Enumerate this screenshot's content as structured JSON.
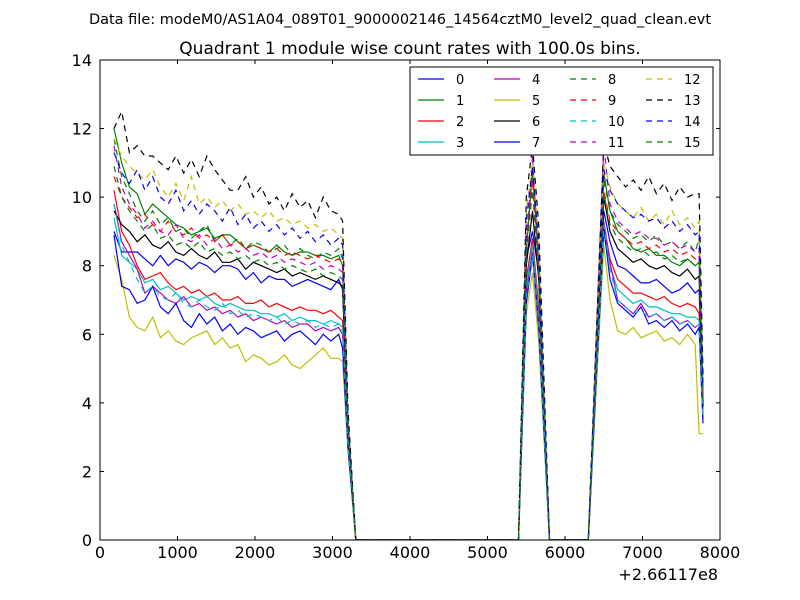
{
  "chart_data": {
    "type": "line",
    "suptitle": "Data file: modeM0/AS1A04_089T01_9000002146_14564cztM0_level2_quad_clean.evt",
    "title": "Quadrant 1 module wise count rates with 100.0s bins.",
    "xlabel": "",
    "ylabel": "",
    "x_offset_label": "+2.66117e8",
    "xlim": [
      0,
      8000
    ],
    "ylim": [
      0,
      14
    ],
    "xticks": [
      0,
      1000,
      2000,
      3000,
      4000,
      5000,
      6000,
      7000,
      8000
    ],
    "yticks": [
      0,
      2,
      4,
      6,
      8,
      10,
      12,
      14
    ],
    "legend_position": "top-right",
    "x_segment1": [
      180,
      280,
      380,
      480,
      580,
      680,
      780,
      880,
      980,
      1080,
      1180,
      1280,
      1380,
      1480,
      1580,
      1680,
      1780,
      1880,
      1980,
      2080,
      2180,
      2280,
      2380,
      2480,
      2580,
      2680,
      2780,
      2880,
      2980,
      3080,
      3130
    ],
    "x_segment2": [
      5500,
      5580,
      5660
    ],
    "x_segment3": [
      6500,
      6580,
      6680,
      6780,
      6880,
      6980,
      7080,
      7180,
      7280,
      7380,
      7480,
      7580,
      7680,
      7730
    ],
    "gap_x": [
      3200,
      3300,
      5400,
      5800,
      6300,
      7780
    ],
    "series": [
      {
        "name": "0",
        "color": "#0000ff",
        "dash": "solid",
        "seg1": [
          9.0,
          8.4,
          8.4,
          8.4,
          8.2,
          8.0,
          8.3,
          8.0,
          8.2,
          8.1,
          7.9,
          8.1,
          8.0,
          7.8,
          8.0,
          8.0,
          7.9,
          7.6,
          7.8,
          7.5,
          7.7,
          7.6,
          7.6,
          7.4,
          7.5,
          7.6,
          7.5,
          7.4,
          7.3,
          7.6,
          7.3
        ],
        "seg2": [
          8.2,
          9.0,
          7.8
        ],
        "seg3": [
          9.6,
          8.7,
          8.0,
          7.9,
          7.7,
          7.5,
          7.5,
          7.6,
          7.4,
          7.2,
          7.3,
          7.5,
          7.2,
          7.3
        ],
        "gap": [
          3.2,
          0,
          0,
          0,
          0,
          4.0
        ]
      },
      {
        "name": "1",
        "color": "#008000",
        "dash": "solid",
        "seg1": [
          12.0,
          11.0,
          10.3,
          10.1,
          9.5,
          9.8,
          9.6,
          9.4,
          9.2,
          9.1,
          8.9,
          9.0,
          9.1,
          8.8,
          8.9,
          8.9,
          8.7,
          8.5,
          8.6,
          8.5,
          8.4,
          8.6,
          8.4,
          8.3,
          8.4,
          8.4,
          8.3,
          8.3,
          8.2,
          8.3,
          8.0
        ],
        "seg2": [
          8.4,
          10.8,
          8.1
        ],
        "seg3": [
          10.7,
          9.6,
          9.0,
          8.8,
          8.5,
          8.4,
          8.5,
          8.3,
          8.3,
          8.1,
          8.0,
          8.2,
          8.0,
          8.1
        ],
        "gap": [
          3.3,
          0,
          0,
          0,
          0,
          4.1
        ]
      },
      {
        "name": "2",
        "color": "#ff0000",
        "dash": "solid",
        "seg1": [
          10.2,
          9.0,
          8.6,
          8.0,
          7.6,
          7.7,
          7.8,
          7.5,
          7.3,
          7.4,
          7.2,
          7.3,
          7.1,
          7.2,
          7.0,
          7.0,
          7.1,
          6.9,
          6.9,
          7.0,
          6.8,
          6.9,
          6.8,
          6.7,
          6.8,
          6.7,
          6.7,
          6.6,
          6.7,
          6.5,
          6.4
        ],
        "seg2": [
          7.6,
          8.8,
          6.8
        ],
        "seg3": [
          9.2,
          8.2,
          7.6,
          7.4,
          7.2,
          7.2,
          7.1,
          7.0,
          7.1,
          6.9,
          6.8,
          6.9,
          6.8,
          6.6
        ],
        "gap": [
          3.0,
          0,
          0,
          0,
          0,
          3.7
        ]
      },
      {
        "name": "3",
        "color": "#00bfbf",
        "dash": "solid",
        "seg1": [
          9.4,
          8.3,
          8.1,
          7.9,
          7.5,
          7.6,
          7.3,
          7.4,
          7.2,
          7.0,
          7.1,
          7.0,
          7.1,
          6.9,
          6.8,
          6.9,
          6.8,
          6.7,
          6.7,
          6.6,
          6.6,
          6.5,
          6.6,
          6.4,
          6.5,
          6.4,
          6.4,
          6.3,
          6.4,
          6.3,
          6.2
        ],
        "seg2": [
          7.4,
          8.6,
          6.6
        ],
        "seg3": [
          9.0,
          8.0,
          7.3,
          7.1,
          6.9,
          7.0,
          6.8,
          6.8,
          6.7,
          6.6,
          6.6,
          6.5,
          6.5,
          6.4
        ],
        "gap": [
          2.9,
          0,
          0,
          0,
          0,
          3.6
        ]
      },
      {
        "name": "4",
        "color": "#bf00bf",
        "dash": "solid",
        "seg1": [
          9.8,
          8.7,
          8.3,
          7.9,
          7.2,
          7.4,
          7.2,
          7.0,
          6.9,
          7.1,
          6.8,
          6.9,
          6.7,
          6.8,
          6.6,
          6.7,
          6.5,
          6.6,
          6.4,
          6.5,
          6.4,
          6.3,
          6.4,
          6.2,
          6.3,
          6.3,
          6.1,
          6.2,
          6.1,
          6.2,
          6.0
        ],
        "seg2": [
          7.2,
          8.4,
          6.5
        ],
        "seg3": [
          9.3,
          8.1,
          7.0,
          6.8,
          6.6,
          6.9,
          6.5,
          6.6,
          6.4,
          6.5,
          6.3,
          6.4,
          6.2,
          6.3
        ],
        "gap": [
          2.8,
          0,
          0,
          0,
          0,
          3.5
        ]
      },
      {
        "name": "5",
        "color": "#bfbf00",
        "dash": "solid",
        "seg1": [
          8.3,
          7.6,
          6.5,
          6.2,
          6.1,
          6.5,
          5.9,
          6.1,
          5.8,
          5.7,
          5.9,
          6.0,
          6.1,
          5.7,
          5.9,
          5.6,
          5.7,
          5.2,
          5.4,
          5.3,
          5.1,
          5.2,
          5.4,
          5.1,
          5.0,
          5.2,
          5.4,
          5.6,
          5.3,
          5.3,
          5.2
        ],
        "seg2": [
          6.6,
          7.8,
          5.8
        ],
        "seg3": [
          8.6,
          7.0,
          6.1,
          6.0,
          6.2,
          5.9,
          6.0,
          6.1,
          5.8,
          5.9,
          5.7,
          6.0,
          5.7,
          3.1
        ],
        "gap": [
          2.6,
          0,
          0,
          0,
          0,
          3.1
        ]
      },
      {
        "name": "6",
        "color": "#000000",
        "dash": "solid",
        "seg1": [
          9.6,
          9.2,
          9.0,
          8.7,
          8.9,
          8.6,
          8.5,
          8.7,
          8.4,
          8.3,
          8.5,
          8.3,
          8.2,
          8.4,
          8.1,
          8.1,
          8.2,
          7.9,
          8.1,
          8.0,
          7.9,
          7.8,
          7.9,
          7.7,
          7.8,
          7.7,
          7.6,
          7.7,
          7.6,
          7.5,
          7.4
        ],
        "seg2": [
          8.0,
          9.6,
          7.6
        ],
        "seg3": [
          10.0,
          9.0,
          8.5,
          8.3,
          8.1,
          8.2,
          8.0,
          7.9,
          8.0,
          7.8,
          7.7,
          7.9,
          7.6,
          7.7
        ],
        "gap": [
          3.1,
          0,
          0,
          0,
          0,
          3.9
        ]
      },
      {
        "name": "7",
        "color": "#0000ff",
        "dash": "solid",
        "seg1": [
          8.9,
          7.4,
          7.3,
          6.9,
          7.0,
          7.4,
          6.8,
          6.6,
          6.9,
          6.4,
          6.2,
          6.6,
          6.3,
          6.5,
          6.1,
          6.3,
          6.0,
          6.2,
          6.1,
          5.9,
          6.0,
          6.1,
          5.8,
          6.0,
          6.1,
          5.9,
          5.7,
          6.0,
          5.8,
          6.0,
          5.6
        ],
        "seg2": [
          6.9,
          8.3,
          6.2
        ],
        "seg3": [
          9.1,
          7.6,
          6.9,
          6.7,
          6.5,
          6.8,
          6.3,
          6.4,
          6.2,
          6.4,
          6.1,
          6.3,
          6.0,
          6.2
        ],
        "gap": [
          2.7,
          0,
          0,
          0,
          0,
          3.4
        ]
      },
      {
        "name": "8",
        "color": "#008000",
        "dash": "dashed",
        "seg1": [
          11.7,
          10.6,
          10.1,
          9.6,
          9.3,
          9.6,
          9.2,
          9.4,
          9.0,
          9.1,
          8.8,
          9.0,
          9.2,
          8.7,
          8.9,
          8.6,
          8.8,
          8.5,
          8.7,
          8.6,
          8.4,
          8.5,
          8.6,
          8.3,
          8.5,
          8.3,
          8.2,
          8.4,
          8.3,
          8.5,
          8.2
        ],
        "seg2": [
          8.8,
          10.7,
          8.0
        ],
        "seg3": [
          10.5,
          9.6,
          9.2,
          9.0,
          8.8,
          8.9,
          8.7,
          8.9,
          8.6,
          8.7,
          8.5,
          8.7,
          8.4,
          8.8
        ],
        "gap": [
          3.4,
          0,
          0,
          0,
          0,
          4.4
        ]
      },
      {
        "name": "9",
        "color": "#ff0000",
        "dash": "dashed",
        "seg1": [
          10.6,
          10.0,
          9.7,
          9.4,
          9.5,
          9.2,
          9.0,
          9.3,
          9.0,
          8.9,
          9.1,
          8.8,
          8.9,
          8.7,
          8.9,
          8.6,
          8.7,
          8.5,
          8.6,
          8.5,
          8.4,
          8.5,
          8.3,
          8.4,
          8.3,
          8.2,
          8.3,
          8.2,
          8.1,
          8.2,
          8.0
        ],
        "seg2": [
          8.6,
          10.5,
          7.9
        ],
        "seg3": [
          10.2,
          9.3,
          9.0,
          8.8,
          8.6,
          8.7,
          8.5,
          8.6,
          8.4,
          8.5,
          8.3,
          8.4,
          8.2,
          8.3
        ],
        "gap": [
          3.3,
          0,
          0,
          0,
          0,
          4.2
        ]
      },
      {
        "name": "10",
        "color": "#00bfbf",
        "dash": "dashed",
        "seg1": [
          9.8,
          8.6,
          8.1,
          7.6,
          7.2,
          7.4,
          7.1,
          7.0,
          7.2,
          6.9,
          6.8,
          7.0,
          6.8,
          6.7,
          6.9,
          6.6,
          6.7,
          6.5,
          6.6,
          6.5,
          6.4,
          6.5,
          6.3,
          6.4,
          6.3,
          6.4,
          6.2,
          6.3,
          6.2,
          6.3,
          6.1
        ],
        "seg2": [
          7.1,
          8.3,
          6.4
        ],
        "seg3": [
          9.2,
          7.9,
          7.0,
          6.8,
          6.6,
          6.7,
          6.5,
          6.6,
          6.4,
          6.5,
          6.3,
          6.4,
          6.2,
          6.3
        ],
        "gap": [
          2.8,
          0,
          0,
          0,
          0,
          3.5
        ]
      },
      {
        "name": "11",
        "color": "#bf00bf",
        "dash": "dashed",
        "seg1": [
          11.5,
          10.3,
          9.8,
          9.5,
          9.1,
          9.3,
          9.0,
          8.9,
          9.2,
          8.8,
          8.7,
          8.9,
          8.6,
          8.8,
          8.5,
          8.6,
          8.4,
          8.5,
          8.3,
          8.4,
          8.2,
          8.3,
          8.1,
          8.2,
          8.1,
          8.0,
          8.1,
          7.9,
          8.0,
          7.9,
          7.8
        ],
        "seg2": [
          8.5,
          11.2,
          7.8
        ],
        "seg3": [
          11.5,
          9.8,
          9.3,
          9.1,
          8.9,
          9.0,
          8.8,
          8.8,
          8.6,
          8.7,
          8.5,
          8.6,
          8.4,
          8.5
        ],
        "gap": [
          3.3,
          0,
          0,
          0,
          0,
          4.3
        ]
      },
      {
        "name": "12",
        "color": "#bfbf00",
        "dash": "dashed",
        "seg1": [
          11.7,
          11.2,
          10.9,
          10.7,
          10.5,
          10.8,
          10.3,
          10.0,
          10.4,
          9.9,
          10.6,
          9.8,
          10.0,
          9.7,
          9.9,
          9.6,
          9.8,
          9.5,
          9.6,
          9.4,
          9.6,
          9.3,
          9.4,
          9.2,
          9.3,
          9.1,
          9.2,
          9.0,
          9.1,
          8.9,
          8.8
        ],
        "seg2": [
          9.6,
          11.0,
          8.8
        ],
        "seg3": [
          11.0,
          10.3,
          9.8,
          9.6,
          9.4,
          9.7,
          9.3,
          9.5,
          9.2,
          9.6,
          9.2,
          9.4,
          9.1,
          9.3
        ],
        "gap": [
          3.6,
          0,
          0,
          0,
          0,
          4.6
        ]
      },
      {
        "name": "13",
        "color": "#000000",
        "dash": "dashed",
        "seg1": [
          12.0,
          12.5,
          11.3,
          11.5,
          11.2,
          11.2,
          11.0,
          10.8,
          11.2,
          10.7,
          11.1,
          10.6,
          11.2,
          10.8,
          10.5,
          10.2,
          10.2,
          10.6,
          10.0,
          10.3,
          9.8,
          10.0,
          9.6,
          10.1,
          9.7,
          9.9,
          9.4,
          10.0,
          9.6,
          9.5,
          9.3
        ],
        "seg2": [
          10.0,
          11.5,
          9.2
        ],
        "seg3": [
          11.6,
          10.9,
          10.6,
          10.3,
          10.5,
          10.2,
          10.6,
          10.1,
          10.4,
          9.9,
          10.3,
          10.0,
          10.1,
          10.1
        ],
        "gap": [
          3.8,
          0,
          0,
          0,
          0,
          4.8
        ]
      },
      {
        "name": "14",
        "color": "#0000ff",
        "dash": "dashed",
        "seg1": [
          11.3,
          10.7,
          10.4,
          10.8,
          10.2,
          10.6,
          10.0,
          9.8,
          10.2,
          9.6,
          9.9,
          9.5,
          9.8,
          9.6,
          9.3,
          9.7,
          9.2,
          9.5,
          9.1,
          9.3,
          9.0,
          9.2,
          8.9,
          9.1,
          8.8,
          9.0,
          8.7,
          8.9,
          8.6,
          8.8,
          8.6
        ],
        "seg2": [
          9.3,
          10.9,
          8.6
        ],
        "seg3": [
          10.8,
          10.2,
          9.8,
          9.6,
          9.4,
          9.5,
          9.3,
          9.4,
          9.1,
          9.3,
          9.0,
          9.2,
          8.9,
          9.0
        ],
        "gap": [
          3.5,
          0,
          0,
          0,
          0,
          4.5
        ]
      },
      {
        "name": "15",
        "color": "#008000",
        "dash": "dashed",
        "seg1": [
          10.9,
          10.0,
          9.6,
          9.3,
          9.0,
          9.2,
          8.8,
          8.9,
          8.6,
          8.7,
          8.5,
          8.7,
          8.4,
          8.5,
          8.3,
          8.4,
          8.2,
          8.3,
          8.1,
          8.2,
          8.0,
          8.1,
          7.9,
          8.0,
          7.9,
          7.8,
          7.9,
          7.7,
          7.8,
          7.7,
          7.6
        ],
        "seg2": [
          8.3,
          10.2,
          7.7
        ],
        "seg3": [
          10.1,
          9.2,
          8.8,
          8.6,
          8.4,
          8.5,
          8.3,
          8.4,
          8.2,
          8.3,
          8.1,
          8.2,
          8.0,
          8.1
        ],
        "gap": [
          3.2,
          0,
          0,
          0,
          0,
          4.0
        ]
      }
    ]
  }
}
